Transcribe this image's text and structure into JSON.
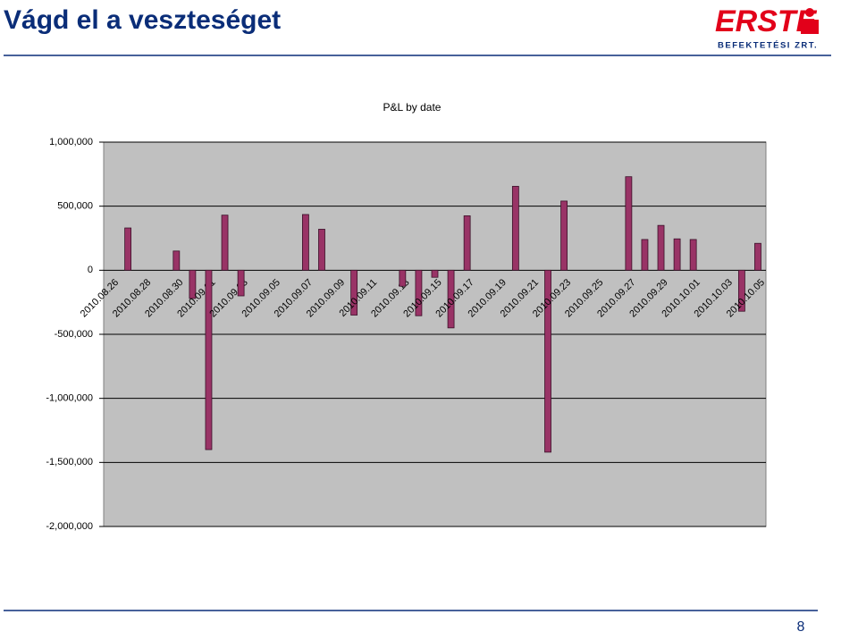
{
  "header": {
    "title": "Vágd el a veszteséget",
    "logo": "ERSTE",
    "logo_subtitle": "BEFEKTETÉSI ZRT."
  },
  "page_number": "8",
  "chart_data": {
    "type": "bar",
    "title": "P&L by date",
    "color": "#993366",
    "grid": true,
    "categories": [
      "2010.08.26",
      null,
      "2010.08.28",
      null,
      "2010.08.30",
      null,
      "2010.09.01",
      null,
      "2010.09.03",
      null,
      "2010.09.05",
      null,
      "2010.09.07",
      null,
      "2010.09.09",
      null,
      "2010.09.11",
      null,
      "2010.09.13",
      null,
      "2010.09.15",
      null,
      "2010.09.17",
      null,
      "2010.09.19",
      null,
      "2010.09.21",
      null,
      "2010.09.23",
      null,
      "2010.09.25",
      null,
      "2010.09.27",
      null,
      "2010.09.29",
      null,
      "2010.10.01",
      null,
      "2010.10.03",
      null,
      "2010.10.05"
    ],
    "values": [
      0,
      330000,
      0,
      0,
      150000,
      -220000,
      -1400000,
      430000,
      -200000,
      0,
      0,
      0,
      435000,
      320000,
      0,
      -350000,
      0,
      0,
      -125000,
      -355000,
      -55000,
      -450000,
      425000,
      0,
      0,
      655000,
      0,
      -1420000,
      540000,
      0,
      0,
      0,
      730000,
      240000,
      350000,
      245000,
      240000,
      0,
      0,
      -320000,
      210000
    ],
    "ylim": [
      -2000000,
      1000000
    ],
    "yticks": [
      {
        "value": -2000000,
        "label": "-2,000,000"
      },
      {
        "value": -1500000,
        "label": "-1,500,000"
      },
      {
        "value": -1000000,
        "label": "-1,000,000"
      },
      {
        "value": -500000,
        "label": "-500,000"
      },
      0,
      {
        "value": 500000,
        "label": "500,000"
      },
      {
        "value": 1000000,
        "label": "1,000,000"
      }
    ]
  }
}
